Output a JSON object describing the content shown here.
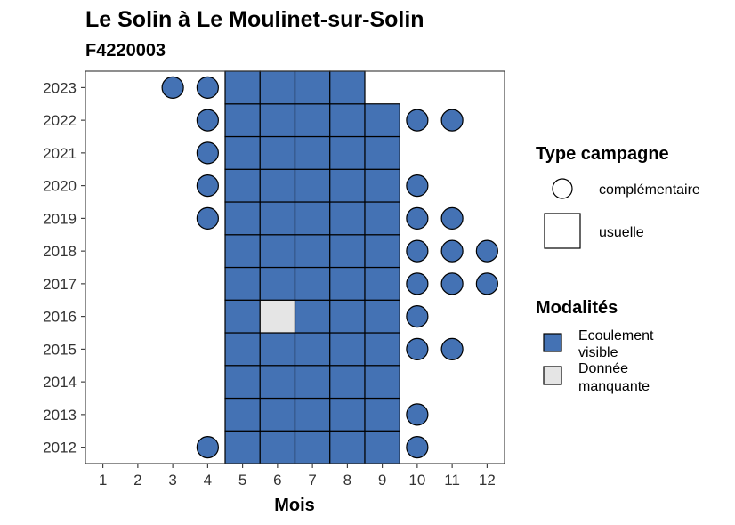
{
  "chart_data": {
    "type": "heatmap",
    "title": "Le Solin à Le Moulinet-sur-Solin",
    "subtitle": "F4220003",
    "xlabel": "Mois",
    "ylabel": "",
    "x_ticks": [
      "1",
      "2",
      "3",
      "4",
      "5",
      "6",
      "7",
      "8",
      "9",
      "10",
      "11",
      "12"
    ],
    "y_ticks": [
      "2012",
      "2013",
      "2014",
      "2015",
      "2016",
      "2017",
      "2018",
      "2019",
      "2020",
      "2021",
      "2022",
      "2023"
    ],
    "xlim": [
      0.5,
      12.5
    ],
    "ylim": [
      2011.5,
      2023.5
    ],
    "grid": false,
    "legend_position": "right",
    "colors": {
      "Ecoulement visible": "#4472b4",
      "Donnée manquante": "#e5e5e5"
    },
    "legend_type": {
      "title": "Type campagne",
      "items": [
        {
          "label": "complémentaire",
          "shape": "circle"
        },
        {
          "label": "usuelle",
          "shape": "square"
        }
      ]
    },
    "legend_modalites": {
      "title": "Modalités",
      "items": [
        {
          "label_line1": "Ecoulement",
          "label_line2": "visible",
          "value": "Ecoulement visible"
        },
        {
          "label_line1": "Donnée",
          "label_line2": "manquante",
          "value": "Donnée manquante"
        }
      ]
    },
    "points": [
      {
        "year": 2012,
        "month": 4,
        "type": "complémentaire",
        "modalite": "Ecoulement visible"
      },
      {
        "year": 2012,
        "month": 5,
        "type": "usuelle",
        "modalite": "Ecoulement visible"
      },
      {
        "year": 2012,
        "month": 6,
        "type": "usuelle",
        "modalite": "Ecoulement visible"
      },
      {
        "year": 2012,
        "month": 7,
        "type": "usuelle",
        "modalite": "Ecoulement visible"
      },
      {
        "year": 2012,
        "month": 8,
        "type": "usuelle",
        "modalite": "Ecoulement visible"
      },
      {
        "year": 2012,
        "month": 9,
        "type": "usuelle",
        "modalite": "Ecoulement visible"
      },
      {
        "year": 2012,
        "month": 10,
        "type": "complémentaire",
        "modalite": "Ecoulement visible"
      },
      {
        "year": 2013,
        "month": 5,
        "type": "usuelle",
        "modalite": "Ecoulement visible"
      },
      {
        "year": 2013,
        "month": 6,
        "type": "usuelle",
        "modalite": "Ecoulement visible"
      },
      {
        "year": 2013,
        "month": 7,
        "type": "usuelle",
        "modalite": "Ecoulement visible"
      },
      {
        "year": 2013,
        "month": 8,
        "type": "usuelle",
        "modalite": "Ecoulement visible"
      },
      {
        "year": 2013,
        "month": 9,
        "type": "usuelle",
        "modalite": "Ecoulement visible"
      },
      {
        "year": 2013,
        "month": 10,
        "type": "complémentaire",
        "modalite": "Ecoulement visible"
      },
      {
        "year": 2014,
        "month": 5,
        "type": "usuelle",
        "modalite": "Ecoulement visible"
      },
      {
        "year": 2014,
        "month": 6,
        "type": "usuelle",
        "modalite": "Ecoulement visible"
      },
      {
        "year": 2014,
        "month": 7,
        "type": "usuelle",
        "modalite": "Ecoulement visible"
      },
      {
        "year": 2014,
        "month": 8,
        "type": "usuelle",
        "modalite": "Ecoulement visible"
      },
      {
        "year": 2014,
        "month": 9,
        "type": "usuelle",
        "modalite": "Ecoulement visible"
      },
      {
        "year": 2015,
        "month": 5,
        "type": "usuelle",
        "modalite": "Ecoulement visible"
      },
      {
        "year": 2015,
        "month": 6,
        "type": "usuelle",
        "modalite": "Ecoulement visible"
      },
      {
        "year": 2015,
        "month": 7,
        "type": "usuelle",
        "modalite": "Ecoulement visible"
      },
      {
        "year": 2015,
        "month": 8,
        "type": "usuelle",
        "modalite": "Ecoulement visible"
      },
      {
        "year": 2015,
        "month": 9,
        "type": "usuelle",
        "modalite": "Ecoulement visible"
      },
      {
        "year": 2015,
        "month": 10,
        "type": "complémentaire",
        "modalite": "Ecoulement visible"
      },
      {
        "year": 2015,
        "month": 11,
        "type": "complémentaire",
        "modalite": "Ecoulement visible"
      },
      {
        "year": 2016,
        "month": 5,
        "type": "usuelle",
        "modalite": "Ecoulement visible"
      },
      {
        "year": 2016,
        "month": 6,
        "type": "usuelle",
        "modalite": "Donnée manquante"
      },
      {
        "year": 2016,
        "month": 7,
        "type": "usuelle",
        "modalite": "Ecoulement visible"
      },
      {
        "year": 2016,
        "month": 8,
        "type": "usuelle",
        "modalite": "Ecoulement visible"
      },
      {
        "year": 2016,
        "month": 9,
        "type": "usuelle",
        "modalite": "Ecoulement visible"
      },
      {
        "year": 2016,
        "month": 10,
        "type": "complémentaire",
        "modalite": "Ecoulement visible"
      },
      {
        "year": 2017,
        "month": 5,
        "type": "usuelle",
        "modalite": "Ecoulement visible"
      },
      {
        "year": 2017,
        "month": 6,
        "type": "usuelle",
        "modalite": "Ecoulement visible"
      },
      {
        "year": 2017,
        "month": 7,
        "type": "usuelle",
        "modalite": "Ecoulement visible"
      },
      {
        "year": 2017,
        "month": 8,
        "type": "usuelle",
        "modalite": "Ecoulement visible"
      },
      {
        "year": 2017,
        "month": 9,
        "type": "usuelle",
        "modalite": "Ecoulement visible"
      },
      {
        "year": 2017,
        "month": 10,
        "type": "complémentaire",
        "modalite": "Ecoulement visible"
      },
      {
        "year": 2017,
        "month": 11,
        "type": "complémentaire",
        "modalite": "Ecoulement visible"
      },
      {
        "year": 2017,
        "month": 12,
        "type": "complémentaire",
        "modalite": "Ecoulement visible"
      },
      {
        "year": 2018,
        "month": 5,
        "type": "usuelle",
        "modalite": "Ecoulement visible"
      },
      {
        "year": 2018,
        "month": 6,
        "type": "usuelle",
        "modalite": "Ecoulement visible"
      },
      {
        "year": 2018,
        "month": 7,
        "type": "usuelle",
        "modalite": "Ecoulement visible"
      },
      {
        "year": 2018,
        "month": 8,
        "type": "usuelle",
        "modalite": "Ecoulement visible"
      },
      {
        "year": 2018,
        "month": 9,
        "type": "usuelle",
        "modalite": "Ecoulement visible"
      },
      {
        "year": 2018,
        "month": 10,
        "type": "complémentaire",
        "modalite": "Ecoulement visible"
      },
      {
        "year": 2018,
        "month": 11,
        "type": "complémentaire",
        "modalite": "Ecoulement visible"
      },
      {
        "year": 2018,
        "month": 12,
        "type": "complémentaire",
        "modalite": "Ecoulement visible"
      },
      {
        "year": 2019,
        "month": 4,
        "type": "complémentaire",
        "modalite": "Ecoulement visible"
      },
      {
        "year": 2019,
        "month": 5,
        "type": "usuelle",
        "modalite": "Ecoulement visible"
      },
      {
        "year": 2019,
        "month": 6,
        "type": "usuelle",
        "modalite": "Ecoulement visible"
      },
      {
        "year": 2019,
        "month": 7,
        "type": "usuelle",
        "modalite": "Ecoulement visible"
      },
      {
        "year": 2019,
        "month": 8,
        "type": "usuelle",
        "modalite": "Ecoulement visible"
      },
      {
        "year": 2019,
        "month": 9,
        "type": "usuelle",
        "modalite": "Ecoulement visible"
      },
      {
        "year": 2019,
        "month": 10,
        "type": "complémentaire",
        "modalite": "Ecoulement visible"
      },
      {
        "year": 2019,
        "month": 11,
        "type": "complémentaire",
        "modalite": "Ecoulement visible"
      },
      {
        "year": 2020,
        "month": 4,
        "type": "complémentaire",
        "modalite": "Ecoulement visible"
      },
      {
        "year": 2020,
        "month": 5,
        "type": "usuelle",
        "modalite": "Ecoulement visible"
      },
      {
        "year": 2020,
        "month": 6,
        "type": "usuelle",
        "modalite": "Ecoulement visible"
      },
      {
        "year": 2020,
        "month": 7,
        "type": "usuelle",
        "modalite": "Ecoulement visible"
      },
      {
        "year": 2020,
        "month": 8,
        "type": "usuelle",
        "modalite": "Ecoulement visible"
      },
      {
        "year": 2020,
        "month": 9,
        "type": "usuelle",
        "modalite": "Ecoulement visible"
      },
      {
        "year": 2020,
        "month": 10,
        "type": "complémentaire",
        "modalite": "Ecoulement visible"
      },
      {
        "year": 2021,
        "month": 4,
        "type": "complémentaire",
        "modalite": "Ecoulement visible"
      },
      {
        "year": 2021,
        "month": 5,
        "type": "usuelle",
        "modalite": "Ecoulement visible"
      },
      {
        "year": 2021,
        "month": 6,
        "type": "usuelle",
        "modalite": "Ecoulement visible"
      },
      {
        "year": 2021,
        "month": 7,
        "type": "usuelle",
        "modalite": "Ecoulement visible"
      },
      {
        "year": 2021,
        "month": 8,
        "type": "usuelle",
        "modalite": "Ecoulement visible"
      },
      {
        "year": 2021,
        "month": 9,
        "type": "usuelle",
        "modalite": "Ecoulement visible"
      },
      {
        "year": 2022,
        "month": 4,
        "type": "complémentaire",
        "modalite": "Ecoulement visible"
      },
      {
        "year": 2022,
        "month": 5,
        "type": "usuelle",
        "modalite": "Ecoulement visible"
      },
      {
        "year": 2022,
        "month": 6,
        "type": "usuelle",
        "modalite": "Ecoulement visible"
      },
      {
        "year": 2022,
        "month": 7,
        "type": "usuelle",
        "modalite": "Ecoulement visible"
      },
      {
        "year": 2022,
        "month": 8,
        "type": "usuelle",
        "modalite": "Ecoulement visible"
      },
      {
        "year": 2022,
        "month": 9,
        "type": "usuelle",
        "modalite": "Ecoulement visible"
      },
      {
        "year": 2022,
        "month": 10,
        "type": "complémentaire",
        "modalite": "Ecoulement visible"
      },
      {
        "year": 2022,
        "month": 11,
        "type": "complémentaire",
        "modalite": "Ecoulement visible"
      },
      {
        "year": 2023,
        "month": 3,
        "type": "complémentaire",
        "modalite": "Ecoulement visible"
      },
      {
        "year": 2023,
        "month": 4,
        "type": "complémentaire",
        "modalite": "Ecoulement visible"
      },
      {
        "year": 2023,
        "month": 5,
        "type": "usuelle",
        "modalite": "Ecoulement visible"
      },
      {
        "year": 2023,
        "month": 6,
        "type": "usuelle",
        "modalite": "Ecoulement visible"
      },
      {
        "year": 2023,
        "month": 7,
        "type": "usuelle",
        "modalite": "Ecoulement visible"
      },
      {
        "year": 2023,
        "month": 8,
        "type": "usuelle",
        "modalite": "Ecoulement visible"
      }
    ]
  }
}
